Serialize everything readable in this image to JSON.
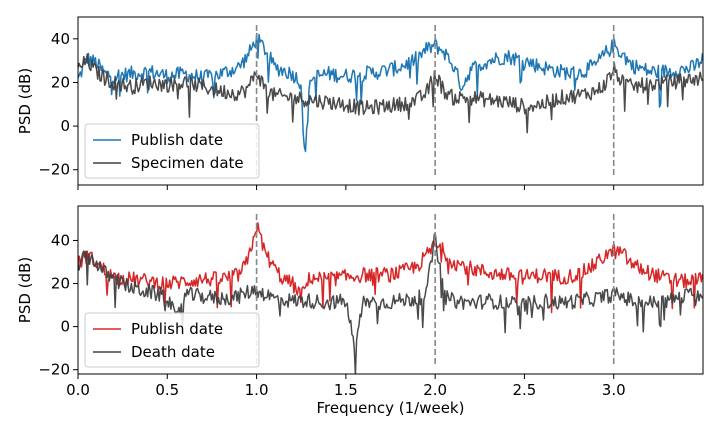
{
  "chart_data": [
    {
      "type": "line",
      "title": "",
      "xlabel": "",
      "ylabel": "PSD (dB)",
      "xlim": [
        0.0,
        3.5
      ],
      "ylim": [
        -27,
        50
      ],
      "yticks": [
        -20,
        0,
        20,
        40
      ],
      "ytick_labels": [
        "−20",
        "0",
        "20",
        "40"
      ],
      "x_tick_labels_shown": false,
      "grid": false,
      "legend": "lower-left",
      "vlines": [
        1.0,
        2.0,
        3.0
      ],
      "vline_color": "#888888",
      "series": [
        {
          "name": "Publish date",
          "color": "#1f77b4",
          "points": [
            [
              0.0,
              21
            ],
            [
              0.05,
              31
            ],
            [
              0.1,
              29
            ],
            [
              0.15,
              24
            ],
            [
              0.2,
              23
            ],
            [
              0.3,
              24
            ],
            [
              0.4,
              25
            ],
            [
              0.5,
              23
            ],
            [
              0.6,
              24
            ],
            [
              0.7,
              22
            ],
            [
              0.8,
              24
            ],
            [
              0.9,
              27
            ],
            [
              0.95,
              32
            ],
            [
              1.0,
              40
            ],
            [
              1.05,
              35
            ],
            [
              1.1,
              27
            ],
            [
              1.2,
              24
            ],
            [
              1.25,
              20
            ],
            [
              1.27,
              -17
            ],
            [
              1.3,
              22
            ],
            [
              1.4,
              24
            ],
            [
              1.5,
              23
            ],
            [
              1.6,
              24
            ],
            [
              1.7,
              25
            ],
            [
              1.8,
              27
            ],
            [
              1.9,
              31
            ],
            [
              1.95,
              35
            ],
            [
              2.0,
              37
            ],
            [
              2.05,
              34
            ],
            [
              2.1,
              28
            ],
            [
              2.15,
              18
            ],
            [
              2.2,
              26
            ],
            [
              2.3,
              30
            ],
            [
              2.4,
              32
            ],
            [
              2.5,
              30
            ],
            [
              2.6,
              27
            ],
            [
              2.7,
              25
            ],
            [
              2.8,
              24
            ],
            [
              2.9,
              28
            ],
            [
              2.95,
              33
            ],
            [
              3.0,
              37
            ],
            [
              3.05,
              33
            ],
            [
              3.1,
              28
            ],
            [
              3.2,
              25
            ],
            [
              3.3,
              25
            ],
            [
              3.4,
              26
            ],
            [
              3.45,
              27
            ],
            [
              3.5,
              31
            ]
          ]
        },
        {
          "name": "Specimen date",
          "color": "#404040",
          "points": [
            [
              0.0,
              26
            ],
            [
              0.05,
              30
            ],
            [
              0.1,
              25
            ],
            [
              0.15,
              22
            ],
            [
              0.2,
              20
            ],
            [
              0.3,
              18
            ],
            [
              0.4,
              20
            ],
            [
              0.5,
              19
            ],
            [
              0.6,
              20
            ],
            [
              0.7,
              18
            ],
            [
              0.8,
              16
            ],
            [
              0.9,
              15
            ],
            [
              0.95,
              17
            ],
            [
              1.0,
              25
            ],
            [
              1.05,
              17
            ],
            [
              1.1,
              14
            ],
            [
              1.2,
              13
            ],
            [
              1.3,
              12
            ],
            [
              1.4,
              11
            ],
            [
              1.5,
              10
            ],
            [
              1.6,
              8
            ],
            [
              1.7,
              9
            ],
            [
              1.8,
              10
            ],
            [
              1.9,
              12
            ],
            [
              1.95,
              15
            ],
            [
              2.0,
              24
            ],
            [
              2.05,
              16
            ],
            [
              2.1,
              13
            ],
            [
              2.2,
              13
            ],
            [
              2.3,
              12
            ],
            [
              2.4,
              11
            ],
            [
              2.5,
              9
            ],
            [
              2.6,
              10
            ],
            [
              2.7,
              13
            ],
            [
              2.8,
              14
            ],
            [
              2.9,
              16
            ],
            [
              2.95,
              19
            ],
            [
              3.0,
              26
            ],
            [
              3.05,
              20
            ],
            [
              3.1,
              18
            ],
            [
              3.2,
              19
            ],
            [
              3.3,
              20
            ],
            [
              3.4,
              21
            ],
            [
              3.5,
              22
            ]
          ]
        }
      ]
    },
    {
      "type": "line",
      "title": "",
      "xlabel": "Frequency (1/week)",
      "ylabel": "PSD (dB)",
      "xlim": [
        0.0,
        3.5
      ],
      "ylim": [
        -22,
        56
      ],
      "xticks": [
        0.0,
        0.5,
        1.0,
        1.5,
        2.0,
        2.5,
        3.0
      ],
      "xtick_labels": [
        "0.0",
        "0.5",
        "1.0",
        "1.5",
        "2.0",
        "2.5",
        "3.0"
      ],
      "yticks": [
        -20,
        0,
        20,
        40
      ],
      "ytick_labels": [
        "−20",
        "0",
        "20",
        "40"
      ],
      "grid": false,
      "legend": "lower-left",
      "vlines": [
        1.0,
        2.0,
        3.0
      ],
      "vline_color": "#888888",
      "series": [
        {
          "name": "Publish date",
          "color": "#d62728",
          "points": [
            [
              0.0,
              29
            ],
            [
              0.05,
              33
            ],
            [
              0.1,
              30
            ],
            [
              0.15,
              26
            ],
            [
              0.2,
              23
            ],
            [
              0.3,
              22
            ],
            [
              0.4,
              21
            ],
            [
              0.5,
              20
            ],
            [
              0.6,
              21
            ],
            [
              0.7,
              22
            ],
            [
              0.8,
              22
            ],
            [
              0.9,
              24
            ],
            [
              0.95,
              30
            ],
            [
              1.0,
              47
            ],
            [
              1.05,
              34
            ],
            [
              1.1,
              27
            ],
            [
              1.15,
              22
            ],
            [
              1.2,
              20
            ],
            [
              1.25,
              14
            ],
            [
              1.3,
              23
            ],
            [
              1.4,
              22
            ],
            [
              1.5,
              23
            ],
            [
              1.6,
              24
            ],
            [
              1.7,
              24
            ],
            [
              1.8,
              25
            ],
            [
              1.9,
              28
            ],
            [
              1.95,
              33
            ],
            [
              2.0,
              38
            ],
            [
              2.05,
              35
            ],
            [
              2.1,
              30
            ],
            [
              2.2,
              27
            ],
            [
              2.3,
              25
            ],
            [
              2.4,
              24
            ],
            [
              2.5,
              23
            ],
            [
              2.6,
              24
            ],
            [
              2.7,
              23
            ],
            [
              2.8,
              24
            ],
            [
              2.9,
              29
            ],
            [
              2.95,
              33
            ],
            [
              3.0,
              35
            ],
            [
              3.05,
              34
            ],
            [
              3.1,
              29
            ],
            [
              3.2,
              25
            ],
            [
              3.3,
              22
            ],
            [
              3.4,
              21
            ],
            [
              3.5,
              22
            ]
          ]
        },
        {
          "name": "Death date",
          "color": "#404040",
          "points": [
            [
              0.0,
              29
            ],
            [
              0.05,
              33
            ],
            [
              0.1,
              30
            ],
            [
              0.15,
              25
            ],
            [
              0.2,
              22
            ],
            [
              0.3,
              18
            ],
            [
              0.4,
              16
            ],
            [
              0.5,
              14
            ],
            [
              0.55,
              3
            ],
            [
              0.6,
              15
            ],
            [
              0.7,
              14
            ],
            [
              0.8,
              13
            ],
            [
              0.9,
              14
            ],
            [
              0.95,
              16
            ],
            [
              1.0,
              17
            ],
            [
              1.05,
              15
            ],
            [
              1.1,
              13
            ],
            [
              1.2,
              12
            ],
            [
              1.3,
              12
            ],
            [
              1.4,
              11
            ],
            [
              1.5,
              12
            ],
            [
              1.55,
              -10
            ],
            [
              1.6,
              12
            ],
            [
              1.7,
              11
            ],
            [
              1.8,
              12
            ],
            [
              1.9,
              13
            ],
            [
              1.95,
              15
            ],
            [
              2.0,
              42
            ],
            [
              2.05,
              14
            ],
            [
              2.1,
              12
            ],
            [
              2.2,
              11
            ],
            [
              2.3,
              12
            ],
            [
              2.4,
              11
            ],
            [
              2.5,
              10
            ],
            [
              2.6,
              12
            ],
            [
              2.7,
              11
            ],
            [
              2.8,
              12
            ],
            [
              2.9,
              13
            ],
            [
              2.95,
              14
            ],
            [
              3.0,
              15
            ],
            [
              3.05,
              14
            ],
            [
              3.1,
              12
            ],
            [
              3.2,
              11
            ],
            [
              3.3,
              12
            ],
            [
              3.4,
              14
            ],
            [
              3.45,
              17
            ],
            [
              3.5,
              13
            ]
          ]
        }
      ]
    }
  ]
}
